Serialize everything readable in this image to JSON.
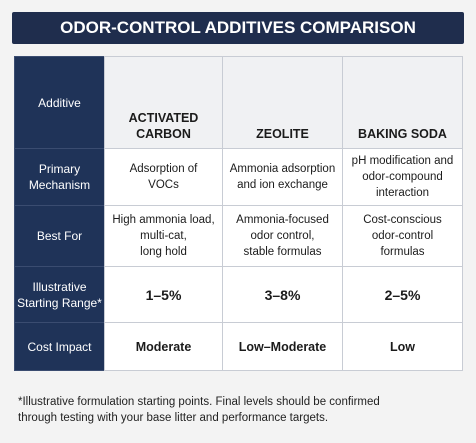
{
  "title": "ODOR-CONTROL ADDITIVES COMPARISON",
  "table": {
    "header": {
      "label": [
        "Additive"
      ],
      "columns": [
        [
          "ACTIVATED",
          "CARBON"
        ],
        [
          "ZEOLITE"
        ],
        [
          "BAKING SODA"
        ]
      ]
    },
    "rows": [
      {
        "label": [
          "Primary",
          "Mechanism"
        ],
        "cells": [
          [
            "Adsorption of",
            "VOCs"
          ],
          [
            "Ammonia adsorption",
            "and ion exchange"
          ],
          [
            "pH modification and",
            "odor-compound",
            "interaction"
          ]
        ]
      },
      {
        "label": [
          "Best For"
        ],
        "cells": [
          [
            "High ammonia load,",
            "multi-cat,",
            "long hold"
          ],
          [
            "Ammonia-focused",
            "odor control,",
            "stable formulas"
          ],
          [
            "Cost-conscious",
            "odor-control",
            "formulas"
          ]
        ]
      },
      {
        "label": [
          "Illustrative",
          "Starting Range*"
        ],
        "cells": [
          [
            "1–5%"
          ],
          [
            "3–8%"
          ],
          [
            "2–5%"
          ]
        ]
      },
      {
        "label": [
          "Cost Impact"
        ],
        "cells": [
          [
            "Moderate"
          ],
          [
            "Low–Moderate"
          ],
          [
            "Low"
          ]
        ]
      }
    ]
  },
  "footnote": [
    "*Illustrative formulation starting points. Final levels should be confirmed",
    "through testing with your base litter and performance targets."
  ]
}
